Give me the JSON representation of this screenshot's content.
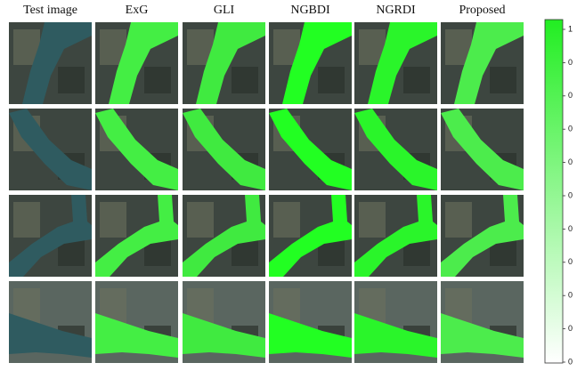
{
  "columns": [
    "Test image",
    "ExG",
    "GLI",
    "NGBDI",
    "NGRDI",
    "Proposed"
  ],
  "colorbar": {
    "ticks": [
      "1",
      "0",
      "0",
      "0",
      "0",
      "0",
      "0",
      "0",
      "0",
      "0",
      "0"
    ]
  }
}
